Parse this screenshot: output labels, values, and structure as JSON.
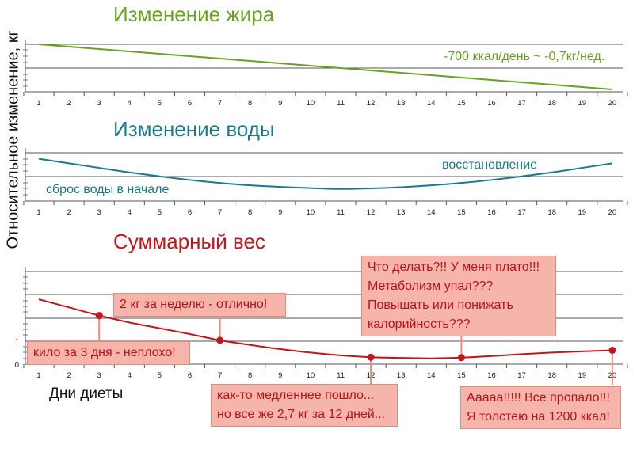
{
  "y_axis_label": "Относительное изменение, кг",
  "x_axis_label": "Дни диеты",
  "chart_data": [
    {
      "type": "line",
      "title": "Изменение жира",
      "color": "#6aa123",
      "x": [
        1,
        2,
        3,
        4,
        5,
        6,
        7,
        8,
        9,
        10,
        11,
        12,
        13,
        14,
        15,
        16,
        17,
        18,
        19,
        20
      ],
      "y": [
        0,
        -0.1,
        -0.2,
        -0.3,
        -0.4,
        -0.5,
        -0.6,
        -0.7,
        -0.8,
        -0.9,
        -1.0,
        -1.1,
        -1.2,
        -1.3,
        -1.4,
        -1.5,
        -1.6,
        -1.7,
        -1.8,
        -1.9
      ],
      "ylim": [
        -2.0,
        0.0
      ],
      "grid": true,
      "annotations": [
        {
          "id": "fat-rate",
          "text": "-700 ккал/день ~ -0,7кг/нед."
        }
      ]
    },
    {
      "type": "line",
      "title": "Изменение воды",
      "color": "#1a7a8c",
      "x": [
        1,
        2,
        3,
        4,
        5,
        6,
        7,
        8,
        9,
        10,
        11,
        12,
        13,
        14,
        15,
        16,
        17,
        18,
        19,
        20
      ],
      "y": [
        0,
        -0.15,
        -0.3,
        -0.45,
        -0.58,
        -0.7,
        -0.8,
        -0.88,
        -0.93,
        -0.97,
        -1.0,
        -0.98,
        -0.94,
        -0.88,
        -0.8,
        -0.7,
        -0.58,
        -0.45,
        -0.3,
        -0.15
      ],
      "ylim": [
        -1.4,
        0.2
      ],
      "grid": true,
      "annotations": [
        {
          "id": "water-drop",
          "text": "сброс воды в начале"
        },
        {
          "id": "water-recovery",
          "text": "восстановление"
        }
      ]
    },
    {
      "type": "line",
      "title": "Суммарный вес",
      "color": "#c0161c",
      "x": [
        1,
        2,
        3,
        4,
        5,
        6,
        7,
        8,
        9,
        10,
        11,
        12,
        13,
        14,
        15,
        16,
        17,
        18,
        19,
        20
      ],
      "y": [
        2.8,
        2.45,
        2.1,
        1.8,
        1.55,
        1.3,
        1.03,
        0.83,
        0.65,
        0.5,
        0.38,
        0.3,
        0.27,
        0.25,
        0.28,
        0.35,
        0.43,
        0.5,
        0.55,
        0.6
      ],
      "ylim": [
        0,
        4
      ],
      "yticks": [
        "0",
        "1"
      ],
      "grid": true,
      "markers": [
        {
          "x": 3,
          "y": 2.1
        },
        {
          "x": 7,
          "y": 1.03
        },
        {
          "x": 12,
          "y": 0.3
        },
        {
          "x": 15,
          "y": 0.28
        },
        {
          "x": 20,
          "y": 0.6
        }
      ],
      "callouts": [
        {
          "id": "kilo-3-days",
          "text": "кило за 3 дня - неплохо!"
        },
        {
          "id": "2kg-week",
          "text": "2 кг за неделю - отлично!"
        },
        {
          "id": "slower",
          "text": "как-то медленнее пошло...\nно все же 2,7 кг за 12 дней..."
        },
        {
          "id": "plateau",
          "text": "Что делать?!! У меня плато!!!\nМетаболизм упал???\nПовышать или понижать\nкалорийность???"
        },
        {
          "id": "gained",
          "text": "Ааааа!!!!! Все пропало!!!\nЯ толстею на 1200 ккал!"
        }
      ]
    }
  ]
}
